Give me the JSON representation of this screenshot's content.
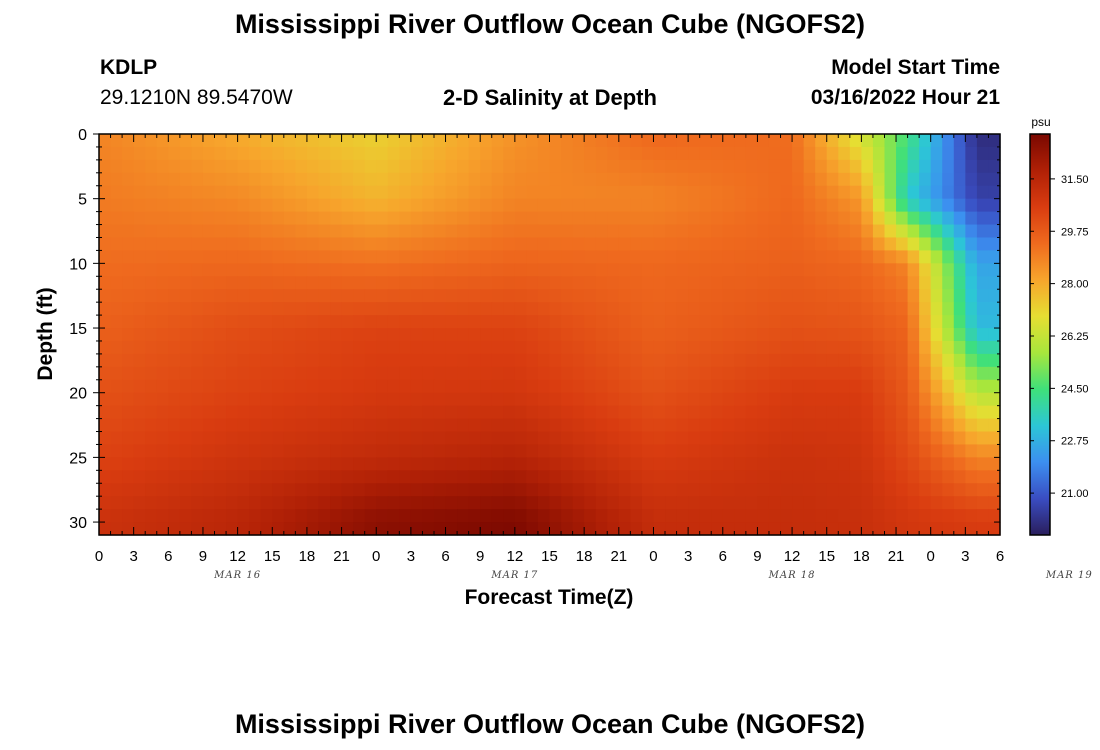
{
  "header": {
    "title": "Mississippi River Outflow Ocean Cube (NGOFS2)",
    "station": "KDLP",
    "coordinates": "29.1210N  89.5470W",
    "plot_subtitle": "2-D Salinity at Depth",
    "model_start_label": "Model Start Time",
    "model_start_value": "03/16/2022 Hour 21"
  },
  "footer": {
    "title": "Mississippi River Outflow Ocean Cube (NGOFS2)"
  },
  "chart_data": {
    "type": "heatmap",
    "title": "2-D Salinity at Depth",
    "xlabel": "Forecast Time(Z)",
    "ylabel": "Depth (ft)",
    "x_start": "2022-03-16T00Z",
    "x_range_hours": [
      0,
      78
    ],
    "x_tick_labels": [
      "0",
      "3",
      "6",
      "9",
      "12",
      "15",
      "18",
      "21",
      "0",
      "3",
      "6",
      "9",
      "12",
      "15",
      "18",
      "21",
      "0",
      "3",
      "6",
      "9",
      "12",
      "15",
      "18",
      "21",
      "0",
      "3",
      "6"
    ],
    "x_date_labels": [
      "MAR 16",
      "MAR 17",
      "MAR 18",
      "MAR 19"
    ],
    "y_range_ft": [
      0,
      31
    ],
    "y_inverted": true,
    "y_tick_labels": [
      "0",
      "5",
      "10",
      "15",
      "20",
      "25",
      "30"
    ],
    "colorbar": {
      "unit": "psu",
      "range": [
        19.6,
        33.0
      ],
      "tick_labels": [
        "31.50",
        "29.75",
        "28.00",
        "26.25",
        "24.50",
        "22.75",
        "21.00"
      ],
      "colormap": [
        "#2a1e5c",
        "#3a4dc2",
        "#3c8ff0",
        "#2cc6d6",
        "#3fe07a",
        "#a8e63c",
        "#e6de32",
        "#f7a52c",
        "#ef6a1e",
        "#d93c10",
        "#b02006",
        "#7a0800"
      ]
    },
    "salinity_depth_ft": [
      0,
      5,
      10,
      15,
      20,
      25,
      30
    ],
    "salinity_time_hours": [
      0,
      12,
      24,
      36,
      48,
      60,
      66,
      70,
      76
    ],
    "salinity_psu": [
      [
        28.8,
        28.0,
        27.2,
        28.5,
        29.4,
        29.3,
        26.5,
        24.5,
        20.0
      ],
      [
        29.0,
        28.7,
        27.8,
        28.8,
        28.8,
        29.4,
        28.4,
        23.4,
        20.5
      ],
      [
        29.3,
        29.4,
        29.2,
        29.5,
        29.4,
        29.6,
        29.4,
        28.8,
        22.5
      ],
      [
        29.6,
        30.1,
        30.4,
        30.4,
        29.6,
        30.0,
        29.9,
        29.5,
        23.0
      ],
      [
        30.0,
        30.4,
        30.7,
        30.8,
        30.0,
        30.6,
        30.6,
        29.8,
        26.0
      ],
      [
        30.4,
        30.9,
        31.3,
        31.6,
        30.6,
        31.0,
        30.9,
        30.2,
        28.8
      ],
      [
        31.0,
        31.5,
        32.6,
        32.9,
        31.2,
        31.2,
        31.1,
        30.8,
        30.6
      ]
    ]
  }
}
